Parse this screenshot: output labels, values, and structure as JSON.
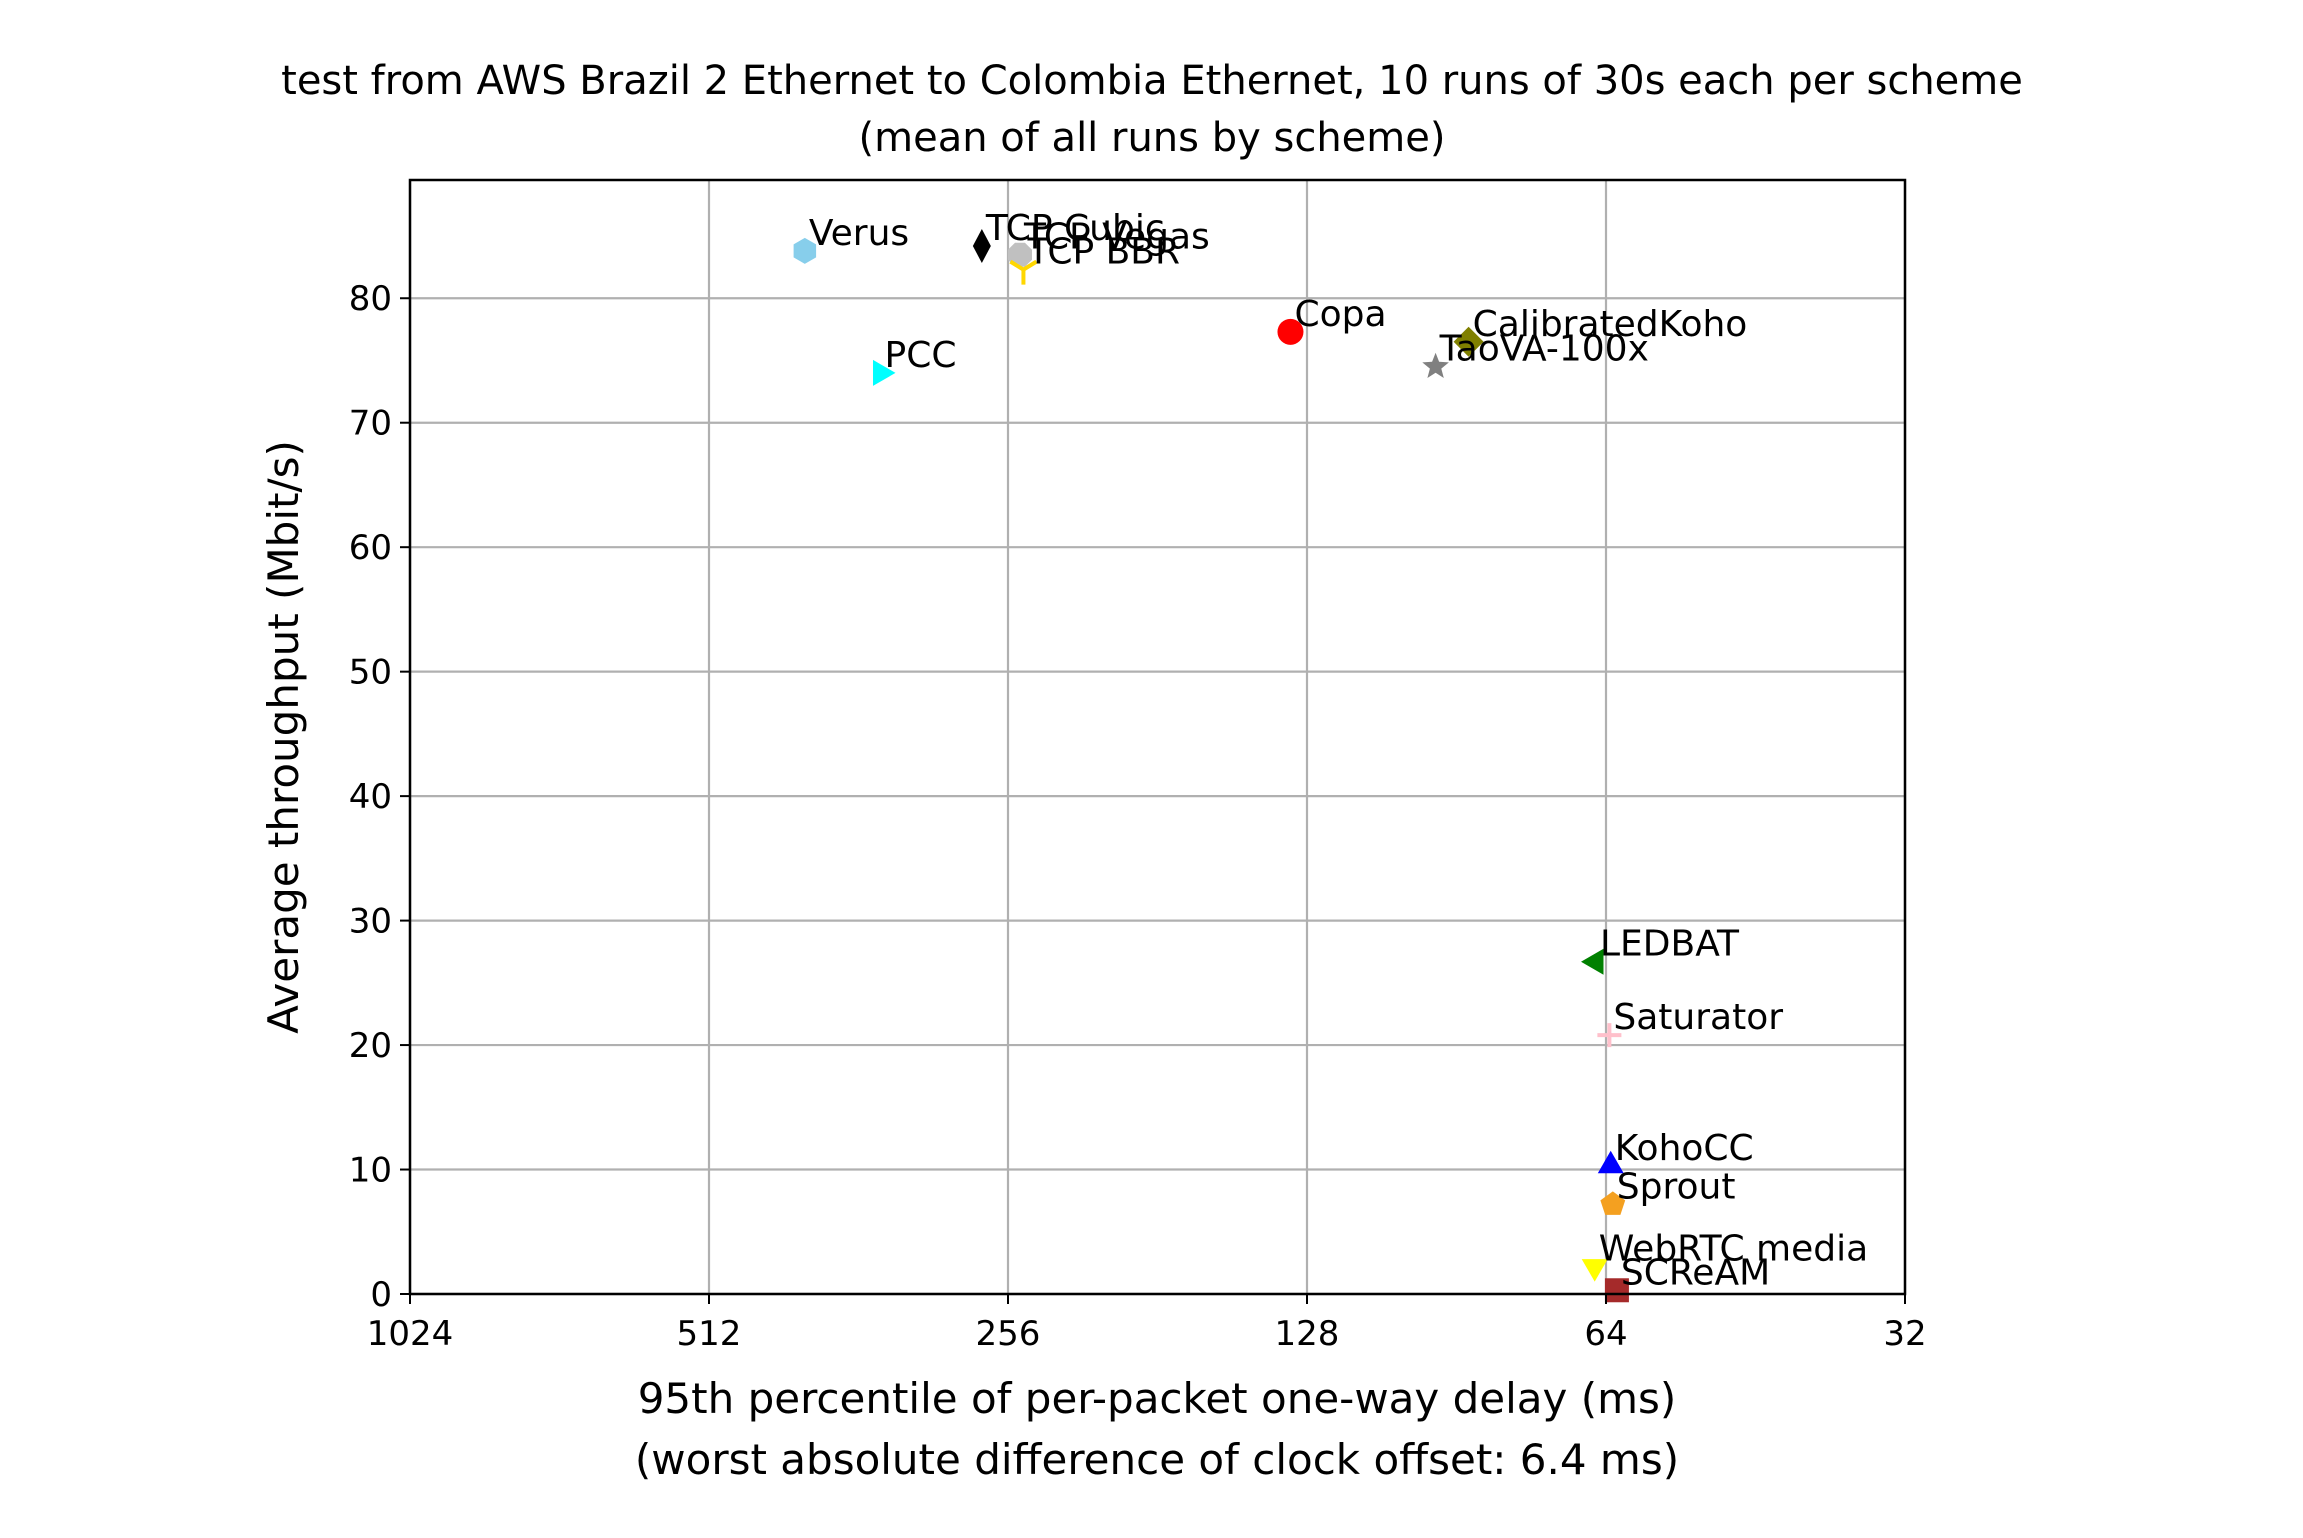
{
  "chart_data": {
    "type": "scatter",
    "title": "test from AWS Brazil 2 Ethernet to Colombia Ethernet, 10 runs of 30s each per scheme",
    "subtitle": "(mean of all runs by scheme)",
    "xlabel": "95th percentile of per-packet one-way delay (ms)",
    "xlabel_note": "(worst absolute difference of clock offset: 6.4 ms)",
    "ylabel": "Average throughput (Mbit/s)",
    "x_scale": "log2",
    "x_inverted": true,
    "xlim": [
      1024,
      32
    ],
    "ylim": [
      0,
      89.5
    ],
    "x_ticks": [
      1024,
      512,
      256,
      128,
      64,
      32
    ],
    "x_tick_labels": [
      "1024",
      "512",
      "256",
      "128",
      "64",
      "32"
    ],
    "y_ticks": [
      0,
      10,
      20,
      30,
      40,
      50,
      60,
      70,
      80
    ],
    "y_tick_labels": [
      "0",
      "10",
      "20",
      "30",
      "40",
      "50",
      "60",
      "70",
      "80"
    ],
    "grid": true,
    "points": [
      {
        "name": "Verus",
        "x": 410,
        "y": 83.8,
        "color": "#87ceeb",
        "marker": "hexagon"
      },
      {
        "name": "TCP Cubic",
        "x": 272,
        "y": 84.2,
        "color": "#000000",
        "marker": "thin-diamond"
      },
      {
        "name": "TCP Vegas",
        "x": 249,
        "y": 83.5,
        "color": "#c0c0c0",
        "marker": "octagon"
      },
      {
        "name": "TCP BBR",
        "x": 247,
        "y": 82.3,
        "color": "#ffd700",
        "marker": "tri-down"
      },
      {
        "name": "PCC",
        "x": 344,
        "y": 74.0,
        "color": "#00ffff",
        "marker": "triangle-right"
      },
      {
        "name": "Copa",
        "x": 133,
        "y": 77.3,
        "color": "#ff0000",
        "marker": "circle"
      },
      {
        "name": "CalibratedKoho",
        "x": 88,
        "y": 76.5,
        "color": "#808000",
        "marker": "diamond"
      },
      {
        "name": "TaoVA-100x",
        "x": 95,
        "y": 74.5,
        "color": "#808080",
        "marker": "star"
      },
      {
        "name": "LEDBAT",
        "x": 65.5,
        "y": 26.7,
        "color": "#008000",
        "marker": "triangle-left"
      },
      {
        "name": "Saturator",
        "x": 63.5,
        "y": 20.8,
        "color": "#ffc0cb",
        "marker": "plus"
      },
      {
        "name": "KohoCC",
        "x": 63.3,
        "y": 10.3,
        "color": "#0000ff",
        "marker": "triangle-up"
      },
      {
        "name": "Sprout",
        "x": 63.0,
        "y": 7.2,
        "color": "#f4a020",
        "marker": "pentagon"
      },
      {
        "name": "WebRTC media",
        "x": 65.7,
        "y": 2.2,
        "color": "#ffff00",
        "marker": "triangle-down"
      },
      {
        "name": "SCReAM",
        "x": 62.4,
        "y": 0.3,
        "color": "#a52a2a",
        "marker": "square"
      }
    ]
  }
}
